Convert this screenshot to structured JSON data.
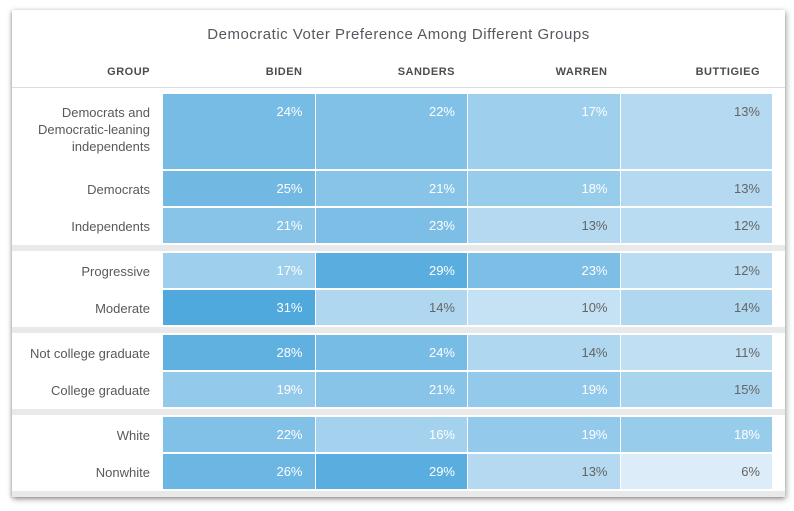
{
  "header": {
    "labels": [
      "GROUP",
      "BIDEN",
      "SANDERS",
      "WARREN",
      "BUTTIGIEG"
    ]
  },
  "heatmap_style": {
    "white_text_threshold": 16,
    "light_text_color": "#ffffff",
    "dark_text_color": "#656565",
    "group_separator_color": "#e9e9e9",
    "header_text_color": "#4a4c4f",
    "title_text_color": "#55585e",
    "row_label_color": "#595959"
  },
  "chart_data": {
    "type": "heatmap",
    "title": "Democratic Voter Preference Among Different Groups",
    "columns": [
      "Biden",
      "Sanders",
      "Warren",
      "Buttigieg"
    ],
    "rows": [
      "Democrats and Democratic-leaning independents",
      "Democrats",
      "Independents",
      "Progressive",
      "Moderate",
      "Not college graduate",
      "College graduate",
      "White",
      "Nonwhite"
    ],
    "values_pct": [
      [
        24,
        22,
        17,
        13
      ],
      [
        25,
        21,
        18,
        13
      ],
      [
        21,
        23,
        13,
        12
      ],
      [
        17,
        29,
        23,
        12
      ],
      [
        31,
        14,
        10,
        14
      ],
      [
        28,
        24,
        14,
        11
      ],
      [
        19,
        21,
        19,
        15
      ],
      [
        22,
        16,
        19,
        18
      ],
      [
        26,
        29,
        13,
        6
      ]
    ],
    "unit": "%",
    "row_groups": [
      [
        0,
        1,
        2
      ],
      [
        3,
        4
      ],
      [
        5,
        6
      ],
      [
        7,
        8
      ]
    ],
    "color_scale": {
      "min": 6,
      "max": 31,
      "min_color": "#dcecf8",
      "max_color": "#4fa9dd"
    },
    "legend": "none",
    "grid": "off"
  }
}
